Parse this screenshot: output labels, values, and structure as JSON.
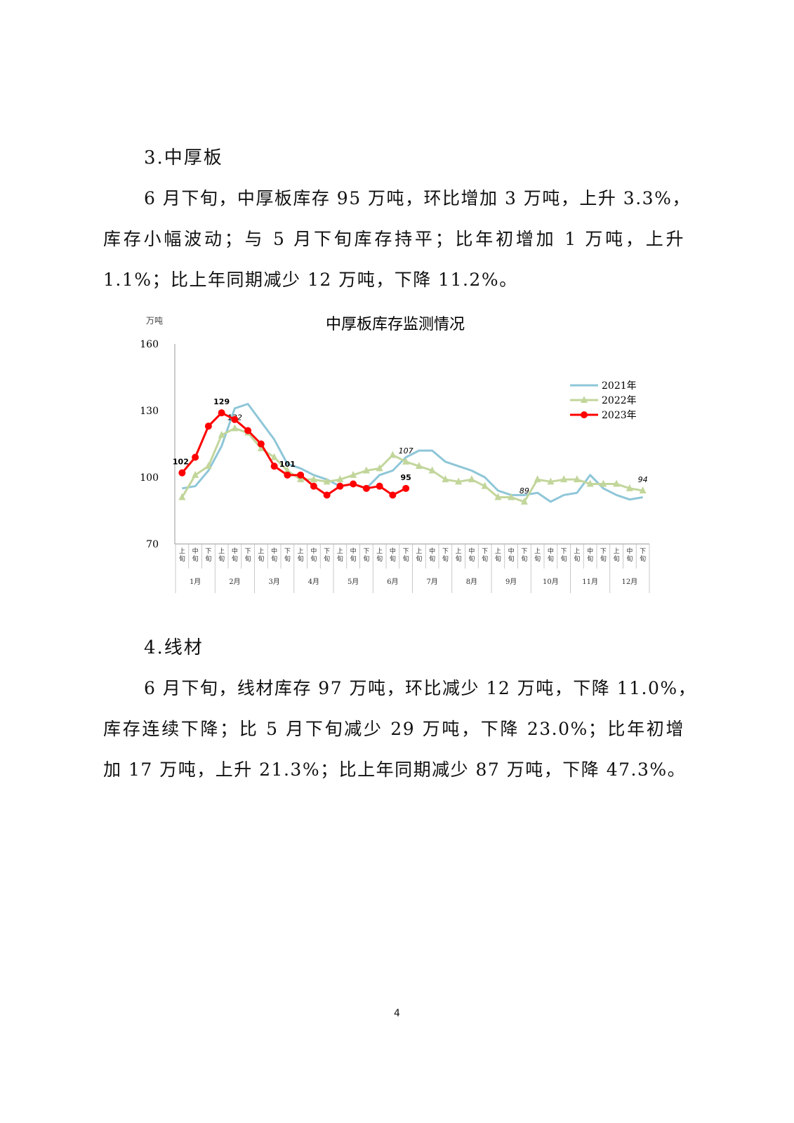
{
  "section3": {
    "heading": "3.中厚板",
    "lines": [
      "6 月下旬，中厚板库存 95 万吨，环比增加 3 万吨，上升 3.3%，",
      "库存小幅波动；与 5 月下旬库存持平；比年初增加 1 万吨，上升",
      "1.1%；比上年同期减少 12 万吨，下降 11.2%。"
    ]
  },
  "section4": {
    "heading": "4.线材",
    "lines": [
      "6 月下旬，线材库存 97 万吨，环比减少 12 万吨，下降 11.0%，",
      "库存连续下降；比 5 月下旬减少 29 万吨，下降 23.0%；比年初增",
      "加 17 万吨，上升 21.3%；比上年同期减少 87 万吨，下降 47.3%。"
    ]
  },
  "page_number": "4",
  "chart_data": {
    "type": "line",
    "title": "中厚板库存监测情况",
    "ylabel": "万吨",
    "ylim": [
      70,
      160
    ],
    "yticks": [
      "160",
      "130",
      "100",
      "70"
    ],
    "grid": false,
    "legend_position": "top-right",
    "periods": [
      "上旬",
      "中旬",
      "下旬"
    ],
    "months": [
      "1月",
      "2月",
      "3月",
      "4月",
      "5月",
      "6月",
      "7月",
      "8月",
      "9月",
      "10月",
      "11月",
      "12月"
    ],
    "series": [
      {
        "name": "2021年",
        "color": "#8ec6d8",
        "marker": "none",
        "values": [
          95,
          96,
          103,
          114,
          131,
          133,
          125,
          117,
          106,
          104,
          101,
          99,
          96,
          97,
          95,
          101,
          103,
          109,
          112,
          112,
          107,
          105,
          103,
          100,
          94,
          92,
          92,
          93,
          89,
          92,
          93,
          101,
          95,
          92,
          90,
          91
        ]
      },
      {
        "name": "2022年",
        "color": "#c2d69b",
        "marker": "triangle",
        "values": [
          91,
          101,
          105,
          119,
          122,
          120,
          113,
          109,
          103,
          99,
          99,
          98,
          99,
          101,
          103,
          104,
          110,
          107,
          105,
          103,
          99,
          98,
          99,
          96,
          91,
          91,
          89,
          99,
          98,
          99,
          99,
          97,
          97,
          97,
          95,
          94
        ],
        "labels": [
          {
            "index": 4,
            "text": "122"
          },
          {
            "index": 17,
            "text": "107"
          },
          {
            "index": 26,
            "text": "89"
          },
          {
            "index": 35,
            "text": "94"
          }
        ]
      },
      {
        "name": "2023年",
        "color": "#ff0000",
        "marker": "circle",
        "values": [
          102,
          109,
          123,
          129,
          126,
          121,
          115,
          105,
          101,
          101,
          96,
          92,
          96,
          97,
          95,
          96,
          92,
          95
        ],
        "labels": [
          {
            "index": 0,
            "text": "102"
          },
          {
            "index": 3,
            "text": "129"
          },
          {
            "index": 8,
            "text": "101"
          },
          {
            "index": 17,
            "text": "95"
          }
        ]
      }
    ]
  }
}
